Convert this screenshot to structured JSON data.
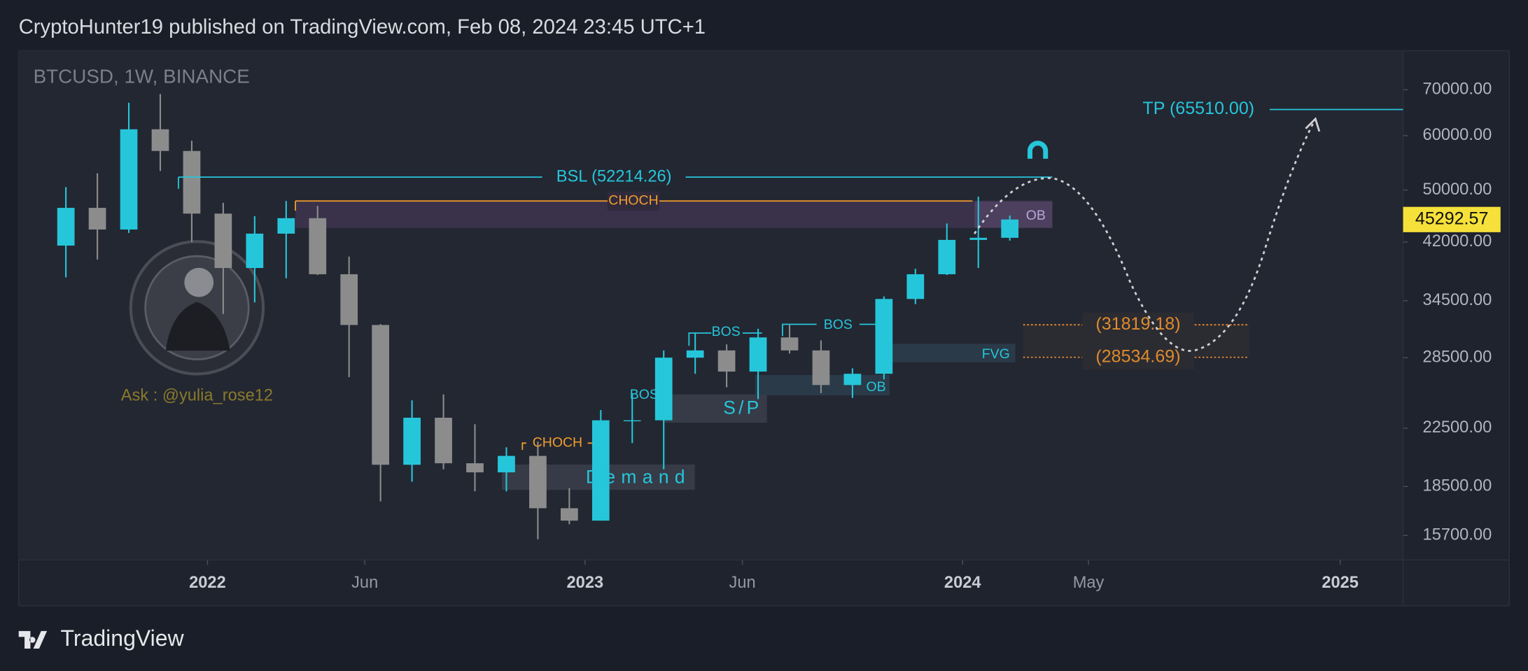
{
  "header": {
    "publisher": "CryptoHunter19 published on TradingView.com, Feb 08, 2024 23:45 UTC+1"
  },
  "chart_data": {
    "type": "candlestick",
    "symbol": "BTCUSD, 1W, BINANCE",
    "log_scale": true,
    "up_color": "#26c6da",
    "down_color": "#8c8c8c",
    "x": [
      "2021-08",
      "2021-09",
      "2021-10",
      "2021-11",
      "2021-12",
      "2022-01",
      "2022-02",
      "2022-03",
      "2022-04",
      "2022-05",
      "2022-06",
      "2022-07",
      "2022-08",
      "2022-09",
      "2022-10",
      "2022-11",
      "2022-12",
      "2023-01",
      "2023-02",
      "2023-03",
      "2023-04",
      "2023-05",
      "2023-06",
      "2023-07",
      "2023-08",
      "2023-09",
      "2023-10",
      "2023-11",
      "2023-12",
      "2024-01",
      "2024-02"
    ],
    "open": [
      41500,
      47100,
      43800,
      61300,
      57000,
      46200,
      38500,
      43200,
      45500,
      37700,
      31800,
      19900,
      23300,
      20000,
      19400,
      20500,
      17200,
      16500,
      23100,
      23100,
      28500,
      29200,
      27200,
      30500,
      29200,
      26000,
      27000,
      34700,
      37700,
      42300,
      42600
    ],
    "high": [
      50500,
      52900,
      67000,
      69000,
      59000,
      47900,
      45800,
      48200,
      47400,
      40000,
      31900,
      24700,
      25200,
      22800,
      21100,
      21500,
      18400,
      23900,
      25200,
      29200,
      31000,
      29800,
      31400,
      31800,
      30200,
      27500,
      35000,
      38400,
      44700,
      48900,
      45900
    ],
    "low": [
      37300,
      39600,
      43300,
      53300,
      42000,
      33000,
      34300,
      37200,
      37600,
      26700,
      17600,
      18800,
      19600,
      18200,
      18200,
      15500,
      16300,
      16500,
      21400,
      19600,
      27000,
      25800,
      24800,
      28900,
      25300,
      24900,
      26500,
      34100,
      37600,
      38500,
      42200
    ],
    "close": [
      47100,
      43800,
      61300,
      57000,
      46200,
      38500,
      43200,
      45500,
      37700,
      31800,
      19900,
      23300,
      20000,
      19400,
      20500,
      17200,
      16500,
      23100,
      23100,
      28500,
      29200,
      27200,
      30500,
      29200,
      26000,
      27000,
      34700,
      37700,
      42300,
      42600,
      45292.57
    ],
    "ylim": [
      14460,
      79800
    ],
    "yticks": [
      {
        "value": 15700,
        "label": "15700.00"
      },
      {
        "value": 18500,
        "label": "18500.00"
      },
      {
        "value": 22500,
        "label": "22500.00"
      },
      {
        "value": 28500,
        "label": "28500.00"
      },
      {
        "value": 34500,
        "label": "34500.00"
      },
      {
        "value": 42000,
        "label": "42000.00"
      },
      {
        "value": 50000,
        "label": "50000.00"
      },
      {
        "value": 60000,
        "label": "60000.00"
      },
      {
        "value": 70000,
        "label": "70000.00"
      }
    ],
    "xlim": [
      "2021-07",
      "2025-03"
    ],
    "xticks": [
      {
        "value": "2022-01",
        "label": "2022"
      },
      {
        "value": "2022-06",
        "label": "Jun"
      },
      {
        "value": "2023-01",
        "label": "2023"
      },
      {
        "value": "2023-06",
        "label": "Jun"
      },
      {
        "value": "2024-01",
        "label": "2024"
      },
      {
        "value": "2024-05",
        "label": "May"
      },
      {
        "value": "2025-01",
        "label": "2025"
      }
    ],
    "levels": [
      {
        "label": "TP (65510.00)",
        "value": 65510.0,
        "color": "#26c6da"
      },
      {
        "label": "BSL (52214.26)",
        "value": 52214.26,
        "color": "#26c6da"
      },
      {
        "label": "CHOCH",
        "value": 48200,
        "color": "#f39c2c"
      },
      {
        "label": "(31819.18)",
        "value": 31819.18,
        "color": "#e08a2c"
      },
      {
        "label": "(28534.69)",
        "value": 28534.69,
        "color": "#e08a2c"
      }
    ],
    "annotations": [
      "OB",
      "BOS",
      "BOS",
      "BOS",
      "S/P",
      "OB",
      "FVG",
      "CHOCH",
      "Demand"
    ]
  },
  "watermark": "Ask : @yulia_rose12",
  "footer": {
    "brand": "TradingView"
  }
}
